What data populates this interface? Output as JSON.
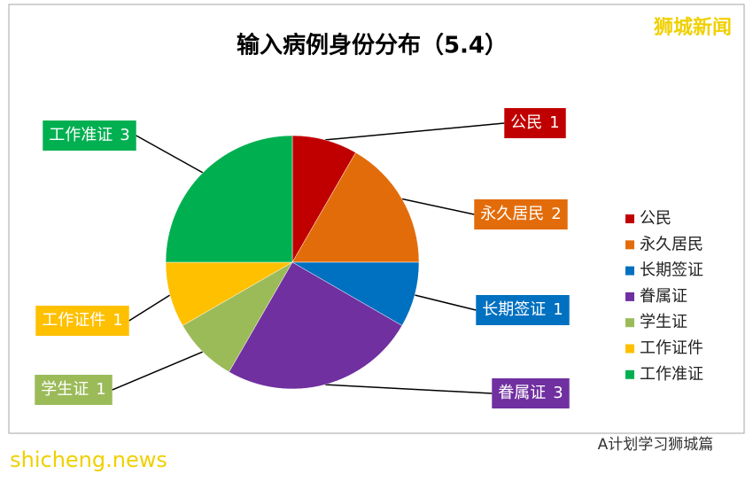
{
  "chart_data": {
    "type": "pie",
    "title": "输入病例身份分布（5.4）",
    "categories": [
      "公民",
      "永久居民",
      "长期签证",
      "眷属证",
      "学生证",
      "工作证件",
      "工作准证"
    ],
    "values": [
      1,
      2,
      1,
      3,
      1,
      1,
      3
    ],
    "colors": [
      "#c00000",
      "#e36c0a",
      "#0070c0",
      "#7030a0",
      "#9bbb59",
      "#ffc000",
      "#00b050"
    ],
    "legend": "right"
  },
  "watermarks": {
    "top_right": "狮城新闻",
    "bottom_left": "shicheng.news",
    "bottom_right": "A计划学习狮城篇"
  }
}
